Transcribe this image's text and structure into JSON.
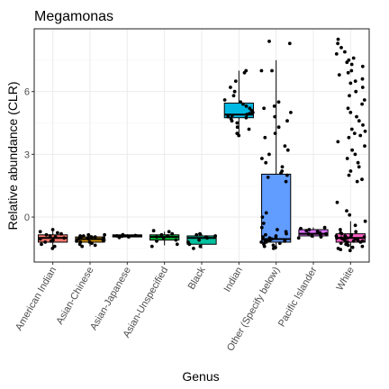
{
  "chart_data": {
    "type": "box",
    "title": "Megamonas",
    "xlabel": "Genus",
    "ylabel": "Relative abundance (CLR)",
    "ylim": [
      -2.15,
      9.0
    ],
    "yticks": [
      0,
      3,
      6
    ],
    "ytick_labels": [
      "0",
      "3",
      "6"
    ],
    "grid": true,
    "categories": [
      "American Indian",
      "Asian-Chinese",
      "Asian-Japanese",
      "Asian-Unspecified",
      "Black",
      "Indian",
      "Other (Specify below)",
      "Pacific Islander",
      "White"
    ],
    "boxes": [
      {
        "category": "American Indian",
        "color": "#F8766D",
        "q1": -1.2,
        "median": -1.0,
        "q3": -0.85,
        "whisker_low": -1.5,
        "whisker_high": -0.65
      },
      {
        "category": "Asian-Chinese",
        "color": "#D39200",
        "q1": -1.2,
        "median": -1.05,
        "q3": -0.95,
        "whisker_low": -1.4,
        "whisker_high": -0.85
      },
      {
        "category": "Asian-Japanese",
        "color": "#93AA00",
        "q1": -0.95,
        "median": -0.9,
        "q3": -0.85,
        "whisker_low": -0.98,
        "whisker_high": -0.82
      },
      {
        "category": "Asian-Unspecified",
        "color": "#00BA38",
        "q1": -1.1,
        "median": -0.95,
        "q3": -0.85,
        "whisker_low": -1.35,
        "whisker_high": -0.7
      },
      {
        "category": "Black",
        "color": "#00C19F",
        "q1": -1.3,
        "median": -1.0,
        "q3": -0.9,
        "whisker_low": -1.5,
        "whisker_high": -0.8
      },
      {
        "category": "Indian",
        "color": "#00B9E3",
        "q1": 4.75,
        "median": 4.9,
        "q3": 5.45,
        "whisker_low": 3.9,
        "whisker_high": 7.0
      },
      {
        "category": "Other (Specify below)",
        "color": "#619CFF",
        "q1": -1.2,
        "median": -1.05,
        "q3": 2.05,
        "whisker_low": -1.55,
        "whisker_high": 7.5
      },
      {
        "category": "Pacific Islander",
        "color": "#DB72FB",
        "q1": -0.9,
        "median": -0.8,
        "q3": -0.6,
        "whisker_low": -1.0,
        "whisker_high": -0.5
      },
      {
        "category": "White",
        "color": "#FF61C3",
        "q1": -1.2,
        "median": -1.0,
        "q3": -0.8,
        "whisker_low": -1.6,
        "whisker_high": -0.2
      }
    ],
    "points": [
      [
        -1.5,
        -1.4,
        -1.3,
        -1.2,
        -1.15,
        -1.1,
        -1.05,
        -1.0,
        -0.95,
        -0.9,
        -0.85,
        -0.8,
        -0.75,
        -0.7,
        -0.6
      ],
      [
        -1.4,
        -1.35,
        -1.3,
        -1.25,
        -1.2,
        -1.2,
        -1.15,
        -1.1,
        -1.1,
        -1.05,
        -1.05,
        -1.0,
        -1.0,
        -1.0,
        -0.95,
        -0.95,
        -0.9,
        -0.9,
        -0.85,
        -0.85
      ],
      [
        -0.98,
        -0.95,
        -0.92,
        -0.9,
        -0.88,
        -0.86,
        -0.84
      ],
      [
        -1.4,
        -1.3,
        -1.15,
        -1.1,
        -1.0,
        -0.95,
        -0.9,
        -0.85,
        -0.8,
        -0.7,
        -0.65
      ],
      [
        -1.5,
        -1.4,
        -1.3,
        -1.2,
        -1.1,
        -1.0,
        -0.95,
        -0.9,
        -0.85,
        -0.8
      ],
      [
        3.9,
        4.0,
        4.2,
        4.3,
        4.5,
        4.6,
        4.7,
        4.75,
        4.8,
        4.85,
        4.9,
        4.95,
        5.0,
        5.1,
        5.2,
        5.3,
        5.4,
        5.5,
        5.6,
        5.8,
        6.0,
        6.2,
        6.5,
        6.9,
        7.0
      ],
      [
        8.4,
        8.3,
        7.0,
        7.0,
        5.5,
        5.3,
        5.2,
        5.0,
        4.8,
        4.6,
        4.3,
        4.0,
        3.8,
        3.4,
        3.2,
        3.0,
        2.8,
        2.6,
        2.4,
        2.2,
        2.1,
        2.0,
        1.9,
        1.7,
        0.2,
        0.0,
        -0.3,
        -0.5,
        -0.6,
        -0.7,
        -0.8,
        -0.85,
        -0.9,
        -0.95,
        -1.0,
        -1.0,
        -1.05,
        -1.05,
        -1.1,
        -1.1,
        -1.15,
        -1.15,
        -1.2,
        -1.2,
        -1.25,
        -1.3,
        -1.35,
        -1.4,
        -1.45,
        -1.5
      ],
      [
        -1.0,
        -0.95,
        -0.9,
        -0.85,
        -0.8,
        -0.8,
        -0.75,
        -0.7,
        -0.65,
        -0.6,
        -0.55,
        -0.5
      ],
      [
        8.5,
        8.3,
        8.1,
        7.9,
        7.8,
        7.6,
        7.5,
        7.4,
        7.3,
        7.2,
        7.0,
        6.9,
        6.8,
        6.6,
        6.5,
        6.4,
        6.2,
        6.0,
        5.8,
        5.6,
        5.4,
        5.2,
        5.0,
        4.8,
        4.6,
        4.4,
        4.2,
        4.1,
        4.0,
        3.9,
        3.8,
        3.6,
        3.4,
        3.2,
        3.0,
        2.8,
        2.6,
        2.4,
        2.2,
        2.0,
        1.8,
        1.7,
        0.7,
        0.3,
        0.1,
        -0.2,
        -0.4,
        -0.6,
        -0.7,
        -0.75,
        -0.8,
        -0.85,
        -0.9,
        -0.9,
        -0.95,
        -0.95,
        -1.0,
        -1.0,
        -1.0,
        -1.05,
        -1.05,
        -1.1,
        -1.1,
        -1.15,
        -1.15,
        -1.2,
        -1.2,
        -1.25,
        -1.3,
        -1.35,
        -1.4,
        -1.45,
        -1.5,
        -1.55,
        -1.6
      ]
    ]
  }
}
